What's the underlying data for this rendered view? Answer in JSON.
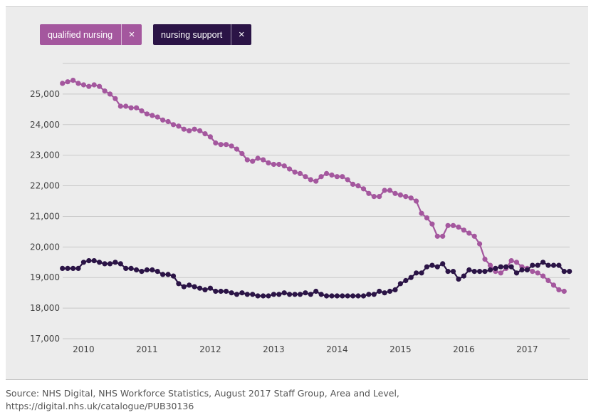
{
  "legend": {
    "qualified_label": "qualified nursing",
    "support_label": "nursing support",
    "close_glyph": "×"
  },
  "source_text": "Source: NHS Digital, NHS Workforce Statistics, August 2017 Staff Group, Area and Level, https://digital.nhs.uk/catalogue/PUB30136",
  "chart_data": {
    "type": "line",
    "title": "",
    "xlabel": "",
    "ylabel": "",
    "ylim": [
      17000,
      26000
    ],
    "xlim": [
      2009.67,
      2017.67
    ],
    "yticks": [
      17000,
      18000,
      19000,
      20000,
      21000,
      22000,
      23000,
      24000,
      25000
    ],
    "ytick_labels": [
      "17,000",
      "18,000",
      "19,000",
      "20,000",
      "21,000",
      "22,000",
      "23,000",
      "24,000",
      "25,000"
    ],
    "xticks": [
      2010,
      2011,
      2012,
      2013,
      2014,
      2015,
      2016,
      2017
    ],
    "xtick_labels": [
      "2010",
      "2011",
      "2012",
      "2013",
      "2014",
      "2015",
      "2016",
      "2017"
    ],
    "grid": true,
    "x_start": 2009.667,
    "x_step": 0.08333,
    "series": [
      {
        "name": "qualified nursing",
        "color": "#a4579e",
        "values": [
          25350,
          25400,
          25450,
          25350,
          25300,
          25250,
          25300,
          25250,
          25100,
          25000,
          24850,
          24600,
          24600,
          24550,
          24550,
          24450,
          24350,
          24300,
          24250,
          24150,
          24100,
          24000,
          23950,
          23850,
          23800,
          23850,
          23800,
          23700,
          23600,
          23400,
          23350,
          23350,
          23300,
          23200,
          23050,
          22850,
          22800,
          22900,
          22850,
          22750,
          22700,
          22700,
          22650,
          22550,
          22450,
          22400,
          22300,
          22200,
          22150,
          22300,
          22400,
          22350,
          22300,
          22300,
          22200,
          22050,
          22000,
          21900,
          21750,
          21650,
          21650,
          21850,
          21850,
          21750,
          21700,
          21650,
          21600,
          21500,
          21100,
          20950,
          20750,
          20350,
          20350,
          20700,
          20700,
          20650,
          20550,
          20450,
          20350,
          20100,
          19600,
          19400,
          19200,
          19150,
          19300,
          19550,
          19500,
          19350,
          19300,
          19200,
          19150,
          19050,
          18900,
          18750,
          18600,
          18550
        ]
      },
      {
        "name": "nursing support",
        "color": "#2b1446",
        "values": [
          19300,
          19300,
          19300,
          19300,
          19500,
          19550,
          19550,
          19500,
          19450,
          19450,
          19500,
          19450,
          19300,
          19300,
          19250,
          19200,
          19250,
          19250,
          19200,
          19100,
          19100,
          19050,
          18800,
          18700,
          18750,
          18700,
          18650,
          18600,
          18650,
          18550,
          18550,
          18550,
          18500,
          18450,
          18500,
          18450,
          18450,
          18400,
          18400,
          18400,
          18450,
          18450,
          18500,
          18450,
          18450,
          18450,
          18500,
          18450,
          18550,
          18450,
          18400,
          18400,
          18400,
          18400,
          18400,
          18400,
          18400,
          18400,
          18450,
          18450,
          18550,
          18500,
          18550,
          18600,
          18800,
          18900,
          19000,
          19150,
          19150,
          19350,
          19400,
          19350,
          19450,
          19200,
          19200,
          18950,
          19050,
          19250,
          19200,
          19200,
          19200,
          19250,
          19300,
          19350,
          19350,
          19350,
          19150,
          19250,
          19250,
          19400,
          19400,
          19500,
          19400,
          19400,
          19400,
          19200,
          19200
        ]
      }
    ]
  }
}
